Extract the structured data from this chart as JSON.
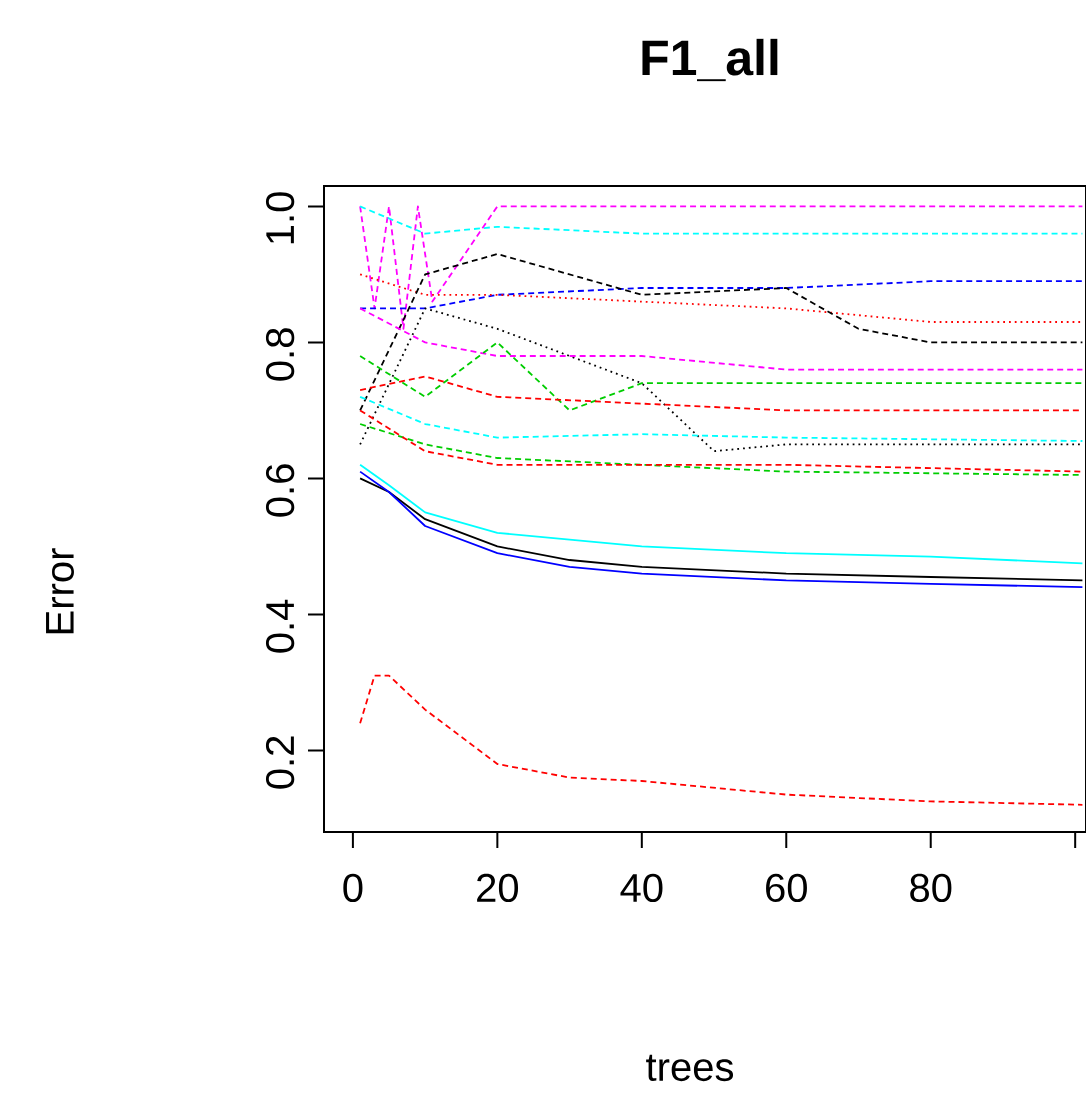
{
  "chart_data": {
    "type": "line",
    "title": "F1_all",
    "xlabel": "trees",
    "ylabel": "Error",
    "xlim": [
      -4,
      101.5
    ],
    "ylim": [
      0.08,
      1.03
    ],
    "xticks": [
      {
        "value": 0,
        "label": "0"
      },
      20,
      40,
      60,
      80,
      {
        "value": 100,
        "label": null
      }
    ],
    "yticks": [
      0.2,
      0.4,
      0.6,
      0.8,
      {
        "value": 1.0,
        "label": "1.0"
      }
    ],
    "marker": "none",
    "series": [
      {
        "color": "#ff0000",
        "line_style": "dashed",
        "x": [
          1,
          3,
          5,
          10,
          20,
          30,
          40,
          60,
          80,
          101
        ],
        "values": [
          0.24,
          0.31,
          0.31,
          0.26,
          0.18,
          0.16,
          0.155,
          0.135,
          0.125,
          0.12
        ]
      },
      {
        "color": "#000000",
        "line_style": "solid",
        "x": [
          1,
          5,
          10,
          20,
          30,
          40,
          60,
          80,
          101
        ],
        "values": [
          0.6,
          0.58,
          0.54,
          0.5,
          0.48,
          0.47,
          0.46,
          0.455,
          0.45
        ]
      },
      {
        "color": "#0000ff",
        "line_style": "solid",
        "x": [
          1,
          5,
          10,
          20,
          30,
          40,
          60,
          80,
          101
        ],
        "values": [
          0.61,
          0.58,
          0.53,
          0.49,
          0.47,
          0.46,
          0.45,
          0.445,
          0.44
        ]
      },
      {
        "color": "#00ffff",
        "line_style": "solid",
        "x": [
          1,
          5,
          10,
          20,
          30,
          40,
          60,
          80,
          101
        ],
        "values": [
          0.62,
          0.59,
          0.55,
          0.52,
          0.51,
          0.5,
          0.49,
          0.485,
          0.475
        ]
      },
      {
        "color": "#ff00ff",
        "line_style": "dashed",
        "x": [
          1,
          3,
          5,
          7,
          9,
          11,
          20,
          40,
          60,
          80,
          101
        ],
        "values": [
          1.0,
          0.85,
          1.0,
          0.82,
          1.0,
          0.86,
          1.0,
          1.0,
          1.0,
          1.0,
          1.0
        ]
      },
      {
        "color": "#00ffff",
        "line_style": "dashed",
        "x": [
          1,
          10,
          20,
          40,
          60,
          80,
          101
        ],
        "values": [
          1.0,
          0.96,
          0.97,
          0.96,
          0.96,
          0.96,
          0.96
        ]
      },
      {
        "color": "#0000ff",
        "line_style": "dashed",
        "x": [
          1,
          10,
          20,
          40,
          60,
          80,
          101
        ],
        "values": [
          0.85,
          0.85,
          0.87,
          0.88,
          0.88,
          0.89,
          0.89
        ]
      },
      {
        "color": "#ff0000",
        "line_style": "dotted",
        "x": [
          1,
          10,
          20,
          40,
          60,
          80,
          101
        ],
        "values": [
          0.9,
          0.87,
          0.87,
          0.86,
          0.85,
          0.83,
          0.83
        ]
      },
      {
        "color": "#000000",
        "line_style": "dashed",
        "x": [
          1,
          10,
          20,
          40,
          60,
          70,
          80,
          101
        ],
        "values": [
          0.7,
          0.9,
          0.93,
          0.87,
          0.88,
          0.82,
          0.8,
          0.8
        ]
      },
      {
        "color": "#000000",
        "line_style": "dotted",
        "x": [
          1,
          10,
          20,
          40,
          50,
          60,
          80,
          101
        ],
        "values": [
          0.65,
          0.85,
          0.82,
          0.74,
          0.64,
          0.65,
          0.65,
          0.65
        ]
      },
      {
        "color": "#ff00ff",
        "line_style": "dashed",
        "x": [
          1,
          10,
          20,
          40,
          60,
          101
        ],
        "values": [
          0.85,
          0.8,
          0.78,
          0.78,
          0.76,
          0.76
        ]
      },
      {
        "color": "#00cd00",
        "line_style": "dashed",
        "x": [
          1,
          10,
          20,
          30,
          40,
          60,
          101
        ],
        "values": [
          0.78,
          0.72,
          0.8,
          0.7,
          0.74,
          0.74,
          0.74
        ]
      },
      {
        "color": "#00cd00",
        "line_style": "dashed",
        "x": [
          1,
          10,
          20,
          40,
          60,
          101
        ],
        "values": [
          0.68,
          0.65,
          0.63,
          0.62,
          0.61,
          0.605
        ]
      },
      {
        "color": "#ff0000",
        "line_style": "dashed",
        "x": [
          1,
          10,
          20,
          40,
          60,
          101
        ],
        "values": [
          0.73,
          0.75,
          0.72,
          0.71,
          0.7,
          0.7
        ]
      },
      {
        "color": "#00ffff",
        "line_style": "dashed",
        "x": [
          1,
          10,
          20,
          40,
          60,
          101
        ],
        "values": [
          0.72,
          0.68,
          0.66,
          0.665,
          0.66,
          0.655
        ]
      },
      {
        "color": "#ff0000",
        "line_style": "dashed",
        "x": [
          1,
          10,
          20,
          40,
          60,
          101
        ],
        "values": [
          0.7,
          0.64,
          0.62,
          0.62,
          0.62,
          0.61
        ]
      }
    ]
  }
}
